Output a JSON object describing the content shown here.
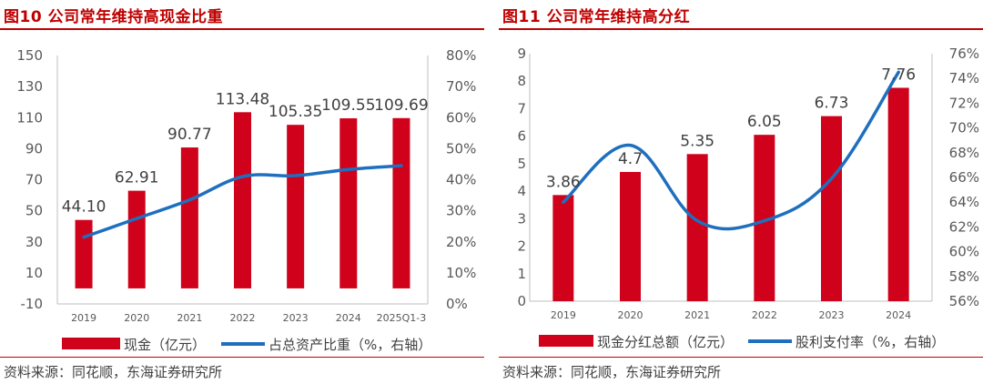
{
  "chart_data": [
    {
      "type": "bar+line",
      "title": "图10  公司常年维持高现金比重",
      "categories": [
        "2019",
        "2020",
        "2021",
        "2022",
        "2023",
        "2024",
        "2025Q1-3"
      ],
      "series": [
        {
          "name": "现金（亿元）",
          "type": "bar",
          "axis": "left",
          "color": "#d0021b",
          "values": [
            44.1,
            62.91,
            90.77,
            113.48,
            105.35,
            109.55,
            109.69
          ],
          "labels": [
            "44.10",
            "62.91",
            "90.77",
            "113.48",
            "105.35",
            "109.55",
            "109.69"
          ]
        },
        {
          "name": "占总资产比重（%，右轴）",
          "type": "line",
          "axis": "right",
          "color": "#1f6fbf",
          "values": [
            21.5,
            27.5,
            33.5,
            41.0,
            41.3,
            43.3,
            44.5
          ]
        }
      ],
      "left_axis": {
        "min": -10,
        "max": 150,
        "ticks": [
          "150",
          "130",
          "110",
          "90",
          "70",
          "50",
          "30",
          "10",
          "-10"
        ],
        "tick_values": [
          150,
          130,
          110,
          90,
          70,
          50,
          30,
          10,
          -10
        ]
      },
      "right_axis": {
        "min": 0,
        "max": 80,
        "ticks": [
          "80%",
          "70%",
          "60%",
          "50%",
          "40%",
          "30%",
          "20%",
          "10%",
          "0%"
        ],
        "tick_values": [
          80,
          70,
          60,
          50,
          40,
          30,
          20,
          10,
          0
        ]
      },
      "source": "资料来源：同花顺，东海证券研究所"
    },
    {
      "type": "bar+line",
      "title": "图11  公司常年维持高分红",
      "categories": [
        "2019",
        "2020",
        "2021",
        "2022",
        "2023",
        "2024"
      ],
      "series": [
        {
          "name": "现金分红总额（亿元）",
          "type": "bar",
          "axis": "left",
          "color": "#d0021b",
          "values": [
            3.86,
            4.7,
            5.35,
            6.05,
            6.73,
            7.76
          ],
          "labels": [
            "3.86",
            "4.7",
            "5.35",
            "6.05",
            "6.73",
            "7.76"
          ]
        },
        {
          "name": "股利支付率（%，右轴）",
          "type": "line",
          "axis": "right",
          "color": "#1f6fbf",
          "values": [
            64.0,
            68.6,
            62.5,
            62.5,
            65.9,
            74.5
          ]
        }
      ],
      "left_axis": {
        "min": 0,
        "max": 9,
        "ticks": [
          "9",
          "8",
          "7",
          "6",
          "5",
          "4",
          "3",
          "2",
          "1",
          "0"
        ],
        "tick_values": [
          9,
          8,
          7,
          6,
          5,
          4,
          3,
          2,
          1,
          0
        ]
      },
      "right_axis": {
        "min": 56,
        "max": 76,
        "ticks": [
          "76%",
          "74%",
          "72%",
          "70%",
          "68%",
          "66%",
          "64%",
          "62%",
          "60%",
          "58%",
          "56%"
        ],
        "tick_values": [
          76,
          74,
          72,
          70,
          68,
          66,
          64,
          62,
          60,
          58,
          56
        ]
      },
      "source": "资料来源：同花顺，东海证券研究所"
    }
  ]
}
